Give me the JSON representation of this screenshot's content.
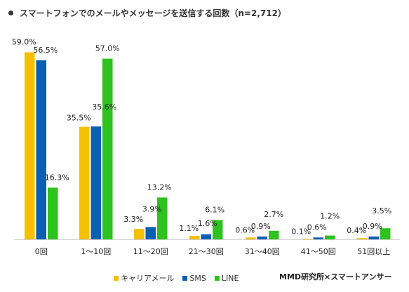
{
  "title": "スマートフォンでのメールやメッセージを送信する回数（n=2,712）",
  "credit": "MMD研究所×スマートアンサー",
  "chart_data": {
    "type": "bar",
    "title": "スマートフォンでのメールやメッセージを送信する回数（n=2,712）",
    "xlabel": "",
    "ylabel": "",
    "ylim": [
      0,
      60
    ],
    "grid": false,
    "legend_position": "bottom",
    "categories": [
      "0回",
      "1〜10回",
      "11〜20回",
      "21〜30回",
      "31〜40回",
      "41〜50回",
      "51回以上"
    ],
    "series": [
      {
        "name": "キャリアメール",
        "color": "#f5c000",
        "values": [
          59.0,
          35.5,
          3.3,
          1.1,
          0.6,
          0.1,
          0.4
        ],
        "labels": [
          "59.0%",
          "35.5%",
          "3.3%",
          "1.1%",
          "0.6%",
          "0.1%",
          "0.4%"
        ]
      },
      {
        "name": "SMS",
        "color": "#0b5fb3",
        "values": [
          56.5,
          35.6,
          3.9,
          1.6,
          0.9,
          0.6,
          0.9
        ],
        "labels": [
          "56.5%",
          "35.6%",
          "3.9%",
          "1.6%",
          "0.9%",
          "0.6%",
          "0.9%"
        ]
      },
      {
        "name": "LINE",
        "color": "#2ec21e",
        "values": [
          16.3,
          57.0,
          13.2,
          6.1,
          2.7,
          1.2,
          3.5
        ],
        "labels": [
          "16.3%",
          "57.0%",
          "13.2%",
          "6.1%",
          "2.7%",
          "1.2%",
          "3.5%"
        ]
      }
    ]
  }
}
